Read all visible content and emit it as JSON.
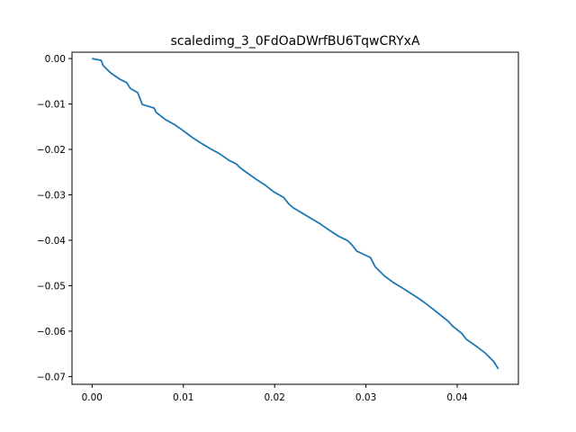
{
  "chart_data": {
    "type": "line",
    "title": "scaledimg_3_0FdOaDWrfBU6TqwCRYxA",
    "xlabel": "",
    "ylabel": "",
    "xlim": [
      -0.0022,
      0.0467
    ],
    "ylim": [
      -0.0717,
      0.0014
    ],
    "xticks": [
      0.0,
      0.01,
      0.02,
      0.03,
      0.04
    ],
    "xtick_labels": [
      "0.00",
      "0.01",
      "0.02",
      "0.03",
      "0.04"
    ],
    "yticks": [
      0.0,
      -0.01,
      -0.02,
      -0.03,
      -0.04,
      -0.05,
      -0.06,
      -0.07
    ],
    "ytick_labels": [
      "0.00",
      "−0.01",
      "−0.02",
      "−0.03",
      "−0.04",
      "−0.05",
      "−0.06",
      "−0.07"
    ],
    "grid": false,
    "series": [
      {
        "color": "#1f77b4",
        "x": [
          0.0,
          0.001,
          0.0012,
          0.002,
          0.003,
          0.0038,
          0.0042,
          0.005,
          0.0055,
          0.006,
          0.0068,
          0.007,
          0.008,
          0.009,
          0.0098,
          0.0104,
          0.011,
          0.012,
          0.013,
          0.014,
          0.015,
          0.0158,
          0.0162,
          0.017,
          0.018,
          0.019,
          0.0198,
          0.021,
          0.0215,
          0.022,
          0.023,
          0.024,
          0.025,
          0.026,
          0.027,
          0.028,
          0.0285,
          0.029,
          0.0305,
          0.031,
          0.032,
          0.033,
          0.034,
          0.035,
          0.036,
          0.037,
          0.038,
          0.039,
          0.0395,
          0.0405,
          0.041,
          0.042,
          0.043,
          0.044,
          0.0445
        ],
        "y": [
          0.0,
          -0.0004,
          -0.0015,
          -0.0031,
          -0.0045,
          -0.0053,
          -0.0066,
          -0.0075,
          -0.0101,
          -0.0104,
          -0.0109,
          -0.0118,
          -0.0134,
          -0.0145,
          -0.0156,
          -0.0165,
          -0.0174,
          -0.0187,
          -0.0199,
          -0.021,
          -0.0224,
          -0.0232,
          -0.024,
          -0.0252,
          -0.0266,
          -0.0279,
          -0.0292,
          -0.0306,
          -0.0319,
          -0.0328,
          -0.034,
          -0.0352,
          -0.0364,
          -0.0378,
          -0.0391,
          -0.0401,
          -0.0411,
          -0.0424,
          -0.0438,
          -0.0458,
          -0.0478,
          -0.0493,
          -0.0505,
          -0.0518,
          -0.0531,
          -0.0546,
          -0.0562,
          -0.0578,
          -0.0589,
          -0.0605,
          -0.0618,
          -0.0632,
          -0.0647,
          -0.0667,
          -0.0683
        ]
      }
    ]
  }
}
